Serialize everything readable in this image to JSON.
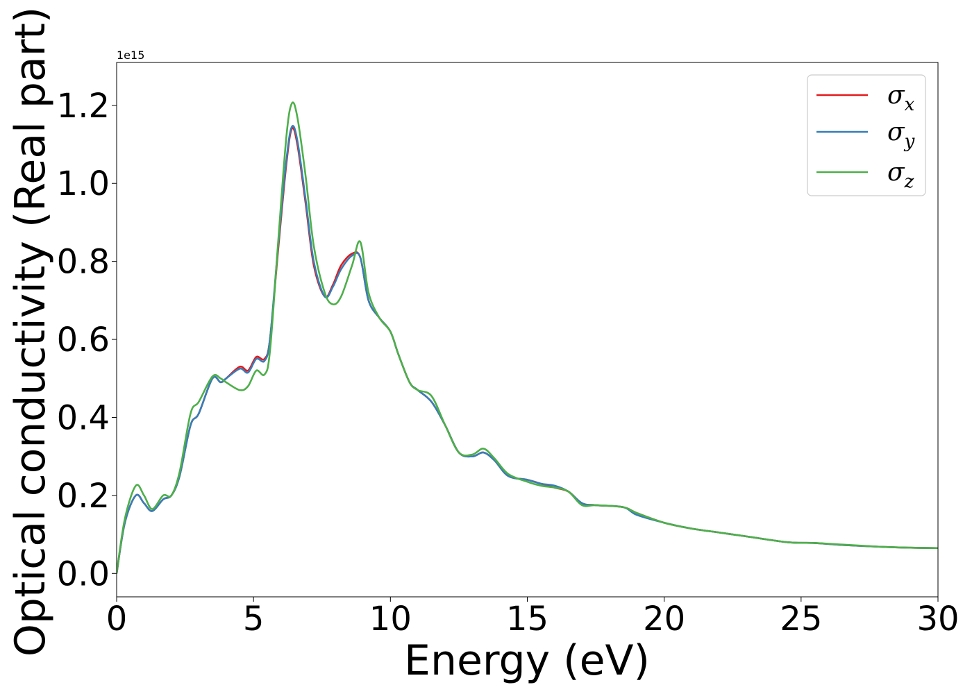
{
  "chart_data": {
    "type": "line",
    "xlabel": "Energy (eV)",
    "ylabel": "Optical conductivity (Real part)",
    "y_offset_label": "1e15",
    "xlim": [
      0,
      30
    ],
    "ylim": [
      -0.06,
      1.31
    ],
    "xticks": [
      0,
      5,
      10,
      15,
      20,
      25,
      30
    ],
    "xtick_labels": [
      "0",
      "5",
      "10",
      "15",
      "20",
      "25",
      "30"
    ],
    "yticks": [
      0.0,
      0.2,
      0.4,
      0.6,
      0.8,
      1.0,
      1.2
    ],
    "ytick_labels": [
      "0.0",
      "0.2",
      "0.4",
      "0.6",
      "0.8",
      "1.0",
      "1.2"
    ],
    "grid": false,
    "legend": {
      "position": "top-right"
    },
    "series": [
      {
        "name": "σx",
        "label_main": "σ",
        "label_sub": "x",
        "color": "#e41a1c",
        "x": [
          0,
          0.3,
          0.7,
          1.0,
          1.3,
          1.7,
          2.0,
          2.3,
          2.7,
          3.0,
          3.5,
          3.8,
          4.0,
          4.5,
          4.8,
          5.1,
          5.4,
          5.6,
          5.9,
          6.2,
          6.4,
          6.6,
          6.9,
          7.2,
          7.6,
          7.9,
          8.2,
          8.6,
          8.9,
          9.2,
          9.6,
          10.0,
          10.3,
          10.7,
          11.0,
          11.5,
          12.0,
          12.5,
          13.0,
          13.4,
          13.8,
          14.3,
          15.0,
          15.5,
          16.0,
          16.5,
          17.0,
          17.5,
          18.5,
          19.0,
          20.0,
          21.0,
          22.0,
          23.0,
          24.5,
          25.5,
          26.5,
          28.0,
          29.0,
          30.0
        ],
        "values": [
          0.0,
          0.13,
          0.2,
          0.18,
          0.16,
          0.19,
          0.2,
          0.25,
          0.38,
          0.41,
          0.5,
          0.49,
          0.5,
          0.53,
          0.52,
          0.555,
          0.55,
          0.6,
          0.83,
          1.05,
          1.14,
          1.1,
          0.95,
          0.79,
          0.71,
          0.74,
          0.79,
          0.82,
          0.81,
          0.7,
          0.655,
          0.62,
          0.56,
          0.49,
          0.47,
          0.44,
          0.38,
          0.31,
          0.3,
          0.31,
          0.29,
          0.25,
          0.24,
          0.23,
          0.22,
          0.21,
          0.18,
          0.175,
          0.17,
          0.155,
          0.13,
          0.115,
          0.105,
          0.095,
          0.08,
          0.078,
          0.073,
          0.068,
          0.066,
          0.065
        ]
      },
      {
        "name": "σy",
        "label_main": "σ",
        "label_sub": "y",
        "color": "#377eb8",
        "x": [
          0,
          0.3,
          0.7,
          1.0,
          1.3,
          1.7,
          2.0,
          2.3,
          2.7,
          3.0,
          3.5,
          3.8,
          4.0,
          4.5,
          4.8,
          5.1,
          5.4,
          5.6,
          5.9,
          6.2,
          6.4,
          6.6,
          6.9,
          7.2,
          7.6,
          7.9,
          8.2,
          8.6,
          8.9,
          9.2,
          9.6,
          10.0,
          10.3,
          10.7,
          11.0,
          11.5,
          12.0,
          12.5,
          13.0,
          13.4,
          13.8,
          14.3,
          15.0,
          15.5,
          16.0,
          16.5,
          17.0,
          17.5,
          18.5,
          19.0,
          20.0,
          21.0,
          22.0,
          23.0,
          24.5,
          25.5,
          26.5,
          28.0,
          29.0,
          30.0
        ],
        "values": [
          0.0,
          0.13,
          0.2,
          0.18,
          0.16,
          0.19,
          0.2,
          0.25,
          0.38,
          0.41,
          0.5,
          0.49,
          0.5,
          0.525,
          0.515,
          0.55,
          0.545,
          0.6,
          0.84,
          1.06,
          1.145,
          1.11,
          0.96,
          0.8,
          0.71,
          0.735,
          0.78,
          0.815,
          0.81,
          0.7,
          0.655,
          0.62,
          0.56,
          0.49,
          0.47,
          0.44,
          0.38,
          0.31,
          0.3,
          0.31,
          0.29,
          0.25,
          0.24,
          0.23,
          0.225,
          0.21,
          0.18,
          0.175,
          0.17,
          0.15,
          0.13,
          0.115,
          0.105,
          0.095,
          0.08,
          0.078,
          0.073,
          0.068,
          0.066,
          0.065
        ]
      },
      {
        "name": "σz",
        "label_main": "σ",
        "label_sub": "z",
        "color": "#4daf4a",
        "x": [
          0,
          0.3,
          0.7,
          1.0,
          1.3,
          1.7,
          2.0,
          2.3,
          2.7,
          3.0,
          3.5,
          3.8,
          4.0,
          4.5,
          4.8,
          5.1,
          5.4,
          5.6,
          5.9,
          6.2,
          6.4,
          6.6,
          6.9,
          7.2,
          7.6,
          7.9,
          8.2,
          8.6,
          8.9,
          9.2,
          9.6,
          10.0,
          10.3,
          10.7,
          11.0,
          11.5,
          12.0,
          12.5,
          13.0,
          13.4,
          13.8,
          14.3,
          15.0,
          15.5,
          16.0,
          16.5,
          17.0,
          17.5,
          18.5,
          19.0,
          20.0,
          21.0,
          22.0,
          23.0,
          24.5,
          25.5,
          26.5,
          28.0,
          29.0,
          30.0
        ],
        "values": [
          0.0,
          0.14,
          0.225,
          0.2,
          0.165,
          0.2,
          0.2,
          0.26,
          0.41,
          0.44,
          0.505,
          0.5,
          0.49,
          0.47,
          0.48,
          0.52,
          0.51,
          0.57,
          0.85,
          1.12,
          1.205,
          1.17,
          1.02,
          0.84,
          0.72,
          0.69,
          0.71,
          0.79,
          0.85,
          0.72,
          0.655,
          0.62,
          0.56,
          0.49,
          0.47,
          0.455,
          0.38,
          0.31,
          0.305,
          0.32,
          0.295,
          0.255,
          0.235,
          0.225,
          0.22,
          0.21,
          0.175,
          0.175,
          0.17,
          0.155,
          0.13,
          0.115,
          0.105,
          0.095,
          0.08,
          0.078,
          0.074,
          0.068,
          0.066,
          0.065
        ]
      }
    ]
  }
}
